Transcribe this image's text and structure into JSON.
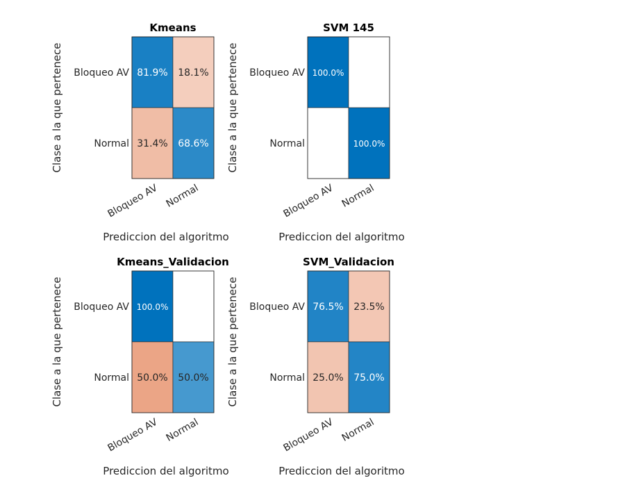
{
  "chart_data": [
    {
      "type": "heatmap",
      "title": "Kmeans",
      "xlabel": "Prediccion del algoritmo",
      "ylabel": "Clase a la que pertenece",
      "x_categories": [
        "Bloqueo AV",
        "Normal"
      ],
      "y_categories": [
        "Bloqueo AV",
        "Normal"
      ],
      "cells": [
        [
          {
            "value": 81.9,
            "text": "81.9%"
          },
          {
            "value": 18.1,
            "text": "18.1%"
          }
        ],
        [
          {
            "value": 31.4,
            "text": "31.4%"
          },
          {
            "value": 68.6,
            "text": "68.6%"
          }
        ]
      ]
    },
    {
      "type": "heatmap",
      "title": "SVM 145",
      "xlabel": "Prediccion del algoritmo",
      "ylabel": "Clase a la que pertenece",
      "x_categories": [
        "Bloqueo AV",
        "Normal"
      ],
      "y_categories": [
        "Bloqueo AV",
        "Normal"
      ],
      "cells": [
        [
          {
            "value": 100.0,
            "text": "100.0%"
          },
          {
            "value": 0,
            "text": ""
          }
        ],
        [
          {
            "value": 0,
            "text": ""
          },
          {
            "value": 100.0,
            "text": "100.0%"
          }
        ]
      ]
    },
    {
      "type": "heatmap",
      "title": "Kmeans_Validacion",
      "xlabel": "Prediccion del algoritmo",
      "ylabel": "Clase a la que pertenece",
      "x_categories": [
        "Bloqueo AV",
        "Normal"
      ],
      "y_categories": [
        "Bloqueo AV",
        "Normal"
      ],
      "cells": [
        [
          {
            "value": 100.0,
            "text": "100.0%"
          },
          {
            "value": 0,
            "text": ""
          }
        ],
        [
          {
            "value": 50.0,
            "text": "50.0%"
          },
          {
            "value": 50.0,
            "text": "50.0%"
          }
        ]
      ]
    },
    {
      "type": "heatmap",
      "title": "SVM_Validacion",
      "xlabel": "Prediccion del algoritmo",
      "ylabel": "Clase a la que pertenece",
      "x_categories": [
        "Bloqueo AV",
        "Normal"
      ],
      "y_categories": [
        "Bloqueo AV",
        "Normal"
      ],
      "cells": [
        [
          {
            "value": 76.5,
            "text": "76.5%"
          },
          {
            "value": 23.5,
            "text": "23.5%"
          }
        ],
        [
          {
            "value": 25.0,
            "text": "25.0%"
          },
          {
            "value": 75.0,
            "text": "75.0%"
          }
        ]
      ]
    }
  ],
  "colors": {
    "correct_max": "#0072bd",
    "incorrect_max": "#d95319",
    "empty": "#ffffff",
    "border": "#262626"
  }
}
